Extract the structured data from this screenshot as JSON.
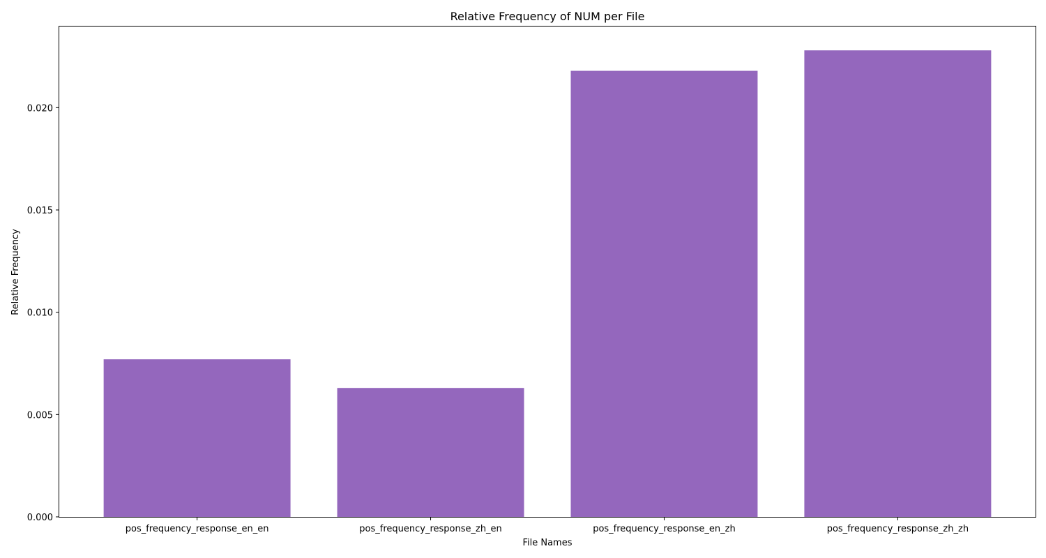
{
  "chart_data": {
    "type": "bar",
    "title": "Relative Frequency of NUM per File",
    "xlabel": "File Names",
    "ylabel": "Relative Frequency",
    "categories": [
      "pos_frequency_response_en_en",
      "pos_frequency_response_zh_en",
      "pos_frequency_response_en_zh",
      "pos_frequency_response_zh_zh"
    ],
    "values": [
      0.0077,
      0.0063,
      0.0218,
      0.0228
    ],
    "ylim": [
      0,
      0.024
    ],
    "yticks": [
      "0.000",
      "0.005",
      "0.010",
      "0.015",
      "0.020"
    ],
    "ytick_values": [
      0,
      0.005,
      0.01,
      0.015,
      0.02
    ],
    "bar_color": "#9467bd",
    "grid": false,
    "legend": "none"
  }
}
